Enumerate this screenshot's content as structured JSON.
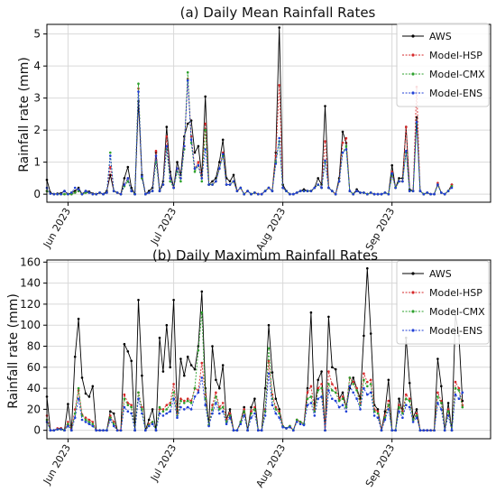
{
  "chart_data": [
    {
      "type": "line",
      "title": "(a) Daily Mean Rainfall Rates",
      "xlabel": "",
      "ylabel": "Rainfall rate (mm)",
      "ylim": [
        -0.25,
        5.3
      ],
      "yticks": [
        0,
        1,
        2,
        3,
        4,
        5
      ],
      "xlim": [
        "2023-05-26",
        "2023-09-29"
      ],
      "xticks": [
        {
          "date": "2023-06-01",
          "label": "Jun 2023"
        },
        {
          "date": "2023-07-01",
          "label": "Jul 2023"
        },
        {
          "date": "2023-08-01",
          "label": "Aug 2023"
        },
        {
          "date": "2023-09-01",
          "label": "Sep 2023"
        }
      ],
      "grid": true,
      "legend": "top-right",
      "start_date": "2023-05-26",
      "series": [
        {
          "name": "AWS",
          "color": "#000000",
          "values": [
            0.45,
            0.05,
            0.0,
            0.02,
            0.03,
            0.1,
            0.0,
            0.05,
            0.1,
            0.2,
            0.0,
            0.1,
            0.08,
            0.02,
            0.0,
            0.05,
            0.0,
            0.1,
            0.6,
            0.1,
            0.05,
            0.0,
            0.5,
            0.85,
            0.2,
            0.0,
            2.9,
            0.6,
            0.0,
            0.1,
            0.2,
            1.3,
            0.1,
            0.4,
            2.1,
            0.7,
            0.2,
            1.0,
            0.6,
            1.8,
            2.2,
            2.3,
            1.3,
            1.5,
            0.6,
            3.05,
            0.3,
            0.4,
            0.5,
            1.0,
            1.7,
            0.5,
            0.4,
            0.6,
            0.1,
            0.2,
            0.0,
            0.1,
            0.0,
            0.05,
            0.0,
            0.0,
            0.1,
            0.2,
            0.1,
            1.3,
            5.2,
            0.3,
            0.1,
            0.0,
            0.0,
            0.05,
            0.1,
            0.15,
            0.1,
            0.1,
            0.2,
            0.5,
            0.3,
            2.75,
            0.2,
            0.1,
            0.0,
            0.5,
            1.95,
            1.6,
            0.1,
            0.0,
            0.15,
            0.05,
            0.05,
            0.0,
            0.05,
            0.0,
            0.0,
            0.0,
            0.05,
            0.0,
            0.9,
            0.2,
            0.5,
            0.5,
            2.1,
            0.15,
            0.1,
            2.4,
            0.1,
            0.0,
            0.05,
            0.0,
            0.0,
            0.3,
            0.05,
            0.0,
            0.1,
            0.3
          ]
        },
        {
          "name": "Model-HSP",
          "color": "#d62728",
          "values": [
            0.1,
            0.02,
            0.0,
            0.0,
            0.0,
            0.0,
            0.0,
            0.0,
            0.05,
            0.1,
            0.0,
            0.05,
            0.05,
            0.0,
            0.0,
            0.05,
            0.0,
            0.05,
            0.85,
            0.1,
            0.05,
            0.0,
            0.3,
            0.5,
            0.1,
            0.0,
            3.3,
            0.5,
            0.0,
            0.05,
            0.1,
            1.35,
            0.1,
            0.3,
            1.8,
            0.5,
            0.2,
            0.8,
            0.5,
            1.5,
            3.6,
            1.8,
            0.8,
            1.0,
            0.5,
            2.2,
            0.3,
            0.3,
            0.4,
            0.8,
            1.3,
            0.3,
            0.3,
            0.4,
            0.1,
            0.2,
            0.0,
            0.1,
            0.0,
            0.05,
            0.0,
            0.0,
            0.1,
            0.2,
            0.1,
            1.2,
            3.4,
            0.2,
            0.1,
            0.0,
            0.0,
            0.05,
            0.1,
            0.1,
            0.1,
            0.1,
            0.2,
            0.3,
            0.2,
            1.65,
            0.2,
            0.1,
            0.0,
            0.4,
            1.6,
            1.75,
            0.1,
            0.0,
            0.1,
            0.05,
            0.05,
            0.0,
            0.05,
            0.0,
            0.0,
            0.0,
            0.05,
            0.0,
            0.7,
            0.2,
            0.4,
            0.4,
            2.1,
            0.1,
            0.1,
            3.35,
            0.1,
            0.0,
            0.05,
            0.0,
            0.0,
            0.35,
            0.05,
            0.0,
            0.1,
            0.3
          ]
        },
        {
          "name": "Model-CMX",
          "color": "#2ca02c",
          "values": [
            0.1,
            0.02,
            0.0,
            0.0,
            0.0,
            0.0,
            0.0,
            0.0,
            0.05,
            0.1,
            0.0,
            0.05,
            0.05,
            0.0,
            0.0,
            0.05,
            0.0,
            0.05,
            1.3,
            0.1,
            0.05,
            0.0,
            0.25,
            0.4,
            0.1,
            0.0,
            3.45,
            0.5,
            0.0,
            0.05,
            0.1,
            1.0,
            0.1,
            0.3,
            1.4,
            0.4,
            0.2,
            0.7,
            0.4,
            1.4,
            3.8,
            1.6,
            0.7,
            0.9,
            0.4,
            2.0,
            0.3,
            0.3,
            0.4,
            0.8,
            1.2,
            0.3,
            0.3,
            0.4,
            0.1,
            0.2,
            0.0,
            0.1,
            0.0,
            0.05,
            0.0,
            0.0,
            0.1,
            0.2,
            0.1,
            1.0,
            1.65,
            0.2,
            0.1,
            0.0,
            0.0,
            0.05,
            0.1,
            0.1,
            0.1,
            0.1,
            0.2,
            0.3,
            0.2,
            1.0,
            0.2,
            0.1,
            0.0,
            0.4,
            1.3,
            1.5,
            0.1,
            0.0,
            0.1,
            0.05,
            0.05,
            0.0,
            0.05,
            0.0,
            0.0,
            0.0,
            0.05,
            0.0,
            0.6,
            0.2,
            0.4,
            0.4,
            1.3,
            0.1,
            0.1,
            2.2,
            0.1,
            0.0,
            0.05,
            0.0,
            0.0,
            0.3,
            0.05,
            0.0,
            0.1,
            0.25
          ]
        },
        {
          "name": "Model-ENS",
          "color": "#1f3fd6",
          "values": [
            0.2,
            0.02,
            0.0,
            0.0,
            0.0,
            0.1,
            0.0,
            0.05,
            0.2,
            0.15,
            0.0,
            0.1,
            0.05,
            0.0,
            0.0,
            0.05,
            0.0,
            0.05,
            1.2,
            0.1,
            0.05,
            0.0,
            0.3,
            0.5,
            0.1,
            0.0,
            3.2,
            0.55,
            0.0,
            0.05,
            0.1,
            1.2,
            0.1,
            0.3,
            1.5,
            0.5,
            0.2,
            0.8,
            0.5,
            1.5,
            3.55,
            1.7,
            0.8,
            0.9,
            0.5,
            1.4,
            0.3,
            0.3,
            0.4,
            0.8,
            1.25,
            0.3,
            0.3,
            0.4,
            0.1,
            0.2,
            0.0,
            0.1,
            0.0,
            0.05,
            0.0,
            0.0,
            0.1,
            0.2,
            0.1,
            0.95,
            1.75,
            0.2,
            0.1,
            0.0,
            0.0,
            0.05,
            0.1,
            0.1,
            0.1,
            0.1,
            0.2,
            0.3,
            0.2,
            1.05,
            0.2,
            0.1,
            0.0,
            0.4,
            1.3,
            1.4,
            0.1,
            0.0,
            0.1,
            0.05,
            0.05,
            0.0,
            0.05,
            0.0,
            0.0,
            0.0,
            0.05,
            0.0,
            0.65,
            0.2,
            0.4,
            0.4,
            1.35,
            0.1,
            0.1,
            2.25,
            0.1,
            0.0,
            0.05,
            0.0,
            0.0,
            0.3,
            0.05,
            0.0,
            0.1,
            0.2
          ]
        }
      ]
    },
    {
      "type": "line",
      "title": "(b) Daily Maximum Rainfall Rates",
      "xlabel": "",
      "ylabel": "Rainfall rate (mm)",
      "ylim": [
        -8,
        162
      ],
      "yticks": [
        0,
        20,
        40,
        60,
        80,
        100,
        120,
        140,
        160
      ],
      "xlim": [
        "2023-05-26",
        "2023-09-29"
      ],
      "xticks": [
        {
          "date": "2023-06-01",
          "label": "Jun 2023"
        },
        {
          "date": "2023-07-01",
          "label": "Jul 2023"
        },
        {
          "date": "2023-08-01",
          "label": "Aug 2023"
        },
        {
          "date": "2023-09-01",
          "label": "Sep 2023"
        }
      ],
      "grid": true,
      "legend": "top-right",
      "start_date": "2023-05-26",
      "series": [
        {
          "name": "AWS",
          "color": "#000000",
          "values": [
            32,
            0,
            0,
            1,
            2,
            0,
            25,
            0,
            70,
            106,
            50,
            35,
            32,
            42,
            0,
            0,
            0,
            0,
            18,
            16,
            0,
            0,
            82,
            75,
            66,
            0,
            124,
            52,
            0,
            10,
            20,
            0,
            88,
            56,
            100,
            60,
            124,
            18,
            68,
            52,
            70,
            62,
            58,
            80,
            132,
            40,
            5,
            80,
            48,
            40,
            62,
            10,
            20,
            0,
            0,
            8,
            22,
            0,
            22,
            30,
            0,
            0,
            40,
            100,
            55,
            30,
            20,
            4,
            2,
            4,
            0,
            10,
            8,
            6,
            40,
            112,
            20,
            48,
            56,
            0,
            108,
            60,
            58,
            30,
            36,
            22,
            40,
            50,
            40,
            30,
            90,
            154,
            92,
            24,
            20,
            0,
            18,
            48,
            0,
            0,
            30,
            18,
            88,
            45,
            12,
            20,
            0,
            0,
            0,
            0,
            0,
            68,
            42,
            0,
            26,
            0,
            110,
            90,
            28
          ]
        },
        {
          "name": "Model-HSP",
          "color": "#d62728",
          "values": [
            14,
            0,
            0,
            2,
            2,
            0,
            8,
            0,
            20,
            38,
            15,
            12,
            10,
            8,
            0,
            0,
            0,
            0,
            14,
            8,
            0,
            0,
            34,
            26,
            24,
            0,
            36,
            22,
            0,
            6,
            8,
            0,
            20,
            20,
            24,
            26,
            44,
            16,
            30,
            28,
            30,
            28,
            40,
            38,
            64,
            34,
            5,
            24,
            36,
            22,
            26,
            10,
            16,
            0,
            0,
            8,
            20,
            0,
            18,
            22,
            0,
            0,
            20,
            66,
            34,
            22,
            18,
            4,
            2,
            4,
            0,
            10,
            8,
            6,
            36,
            42,
            20,
            40,
            44,
            0,
            56,
            44,
            40,
            30,
            32,
            22,
            50,
            46,
            40,
            26,
            54,
            46,
            48,
            20,
            18,
            0,
            14,
            28,
            0,
            0,
            24,
            18,
            34,
            30,
            10,
            16,
            0,
            0,
            0,
            0,
            0,
            36,
            28,
            0,
            20,
            0,
            46,
            40,
            24
          ]
        },
        {
          "name": "Model-CMX",
          "color": "#2ca02c",
          "values": [
            10,
            0,
            0,
            1,
            1,
            0,
            6,
            0,
            16,
            40,
            14,
            10,
            8,
            6,
            0,
            0,
            0,
            0,
            12,
            6,
            0,
            0,
            30,
            24,
            22,
            0,
            36,
            20,
            0,
            5,
            8,
            0,
            22,
            18,
            20,
            24,
            36,
            14,
            28,
            26,
            28,
            26,
            40,
            76,
            112,
            30,
            5,
            20,
            32,
            20,
            22,
            8,
            14,
            0,
            0,
            8,
            18,
            0,
            16,
            20,
            0,
            0,
            18,
            78,
            30,
            20,
            16,
            4,
            2,
            4,
            0,
            10,
            8,
            6,
            30,
            32,
            18,
            38,
            40,
            0,
            44,
            38,
            36,
            28,
            30,
            22,
            50,
            44,
            38,
            24,
            48,
            42,
            44,
            18,
            16,
            0,
            12,
            24,
            0,
            0,
            22,
            16,
            30,
            28,
            10,
            14,
            0,
            0,
            0,
            0,
            0,
            32,
            26,
            0,
            18,
            0,
            40,
            38,
            22
          ]
        },
        {
          "name": "Model-ENS",
          "color": "#1f3fd6",
          "values": [
            8,
            0,
            0,
            1,
            1,
            0,
            4,
            0,
            12,
            30,
            10,
            8,
            6,
            4,
            0,
            0,
            0,
            0,
            10,
            4,
            0,
            0,
            22,
            18,
            16,
            0,
            30,
            16,
            0,
            4,
            6,
            0,
            16,
            14,
            16,
            18,
            30,
            12,
            22,
            20,
            22,
            20,
            32,
            36,
            50,
            24,
            4,
            16,
            26,
            16,
            18,
            6,
            12,
            0,
            0,
            6,
            14,
            0,
            12,
            16,
            0,
            0,
            14,
            54,
            24,
            16,
            12,
            3,
            2,
            3,
            0,
            8,
            6,
            5,
            24,
            26,
            14,
            30,
            32,
            0,
            38,
            30,
            28,
            22,
            24,
            18,
            42,
            36,
            30,
            20,
            40,
            34,
            36,
            14,
            12,
            0,
            10,
            20,
            0,
            0,
            18,
            12,
            24,
            22,
            8,
            12,
            0,
            0,
            0,
            0,
            0,
            26,
            20,
            0,
            14,
            0,
            34,
            30,
            36
          ]
        }
      ]
    }
  ]
}
